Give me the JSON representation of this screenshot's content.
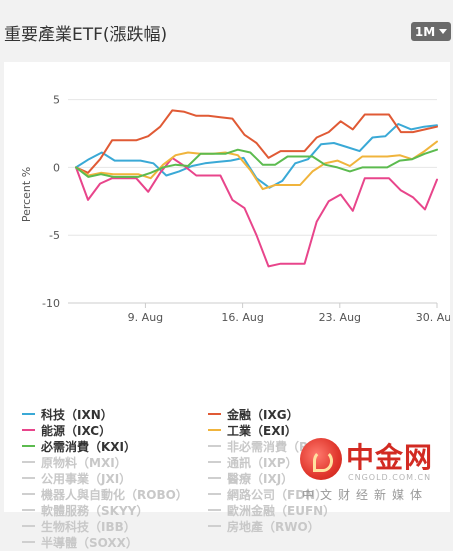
{
  "header": {
    "title": "重要產業ETF(漲跌幅)",
    "range_label": "1M"
  },
  "chart_data": {
    "type": "line",
    "ylabel": "Percent %",
    "ylim": [
      -10,
      6
    ],
    "yticks": [
      5,
      0,
      -5,
      -10
    ],
    "xlim": [
      0,
      26
    ],
    "xticks": [
      {
        "pos": 5,
        "label": "9. Aug"
      },
      {
        "pos": 12,
        "label": "16. Aug"
      },
      {
        "pos": 19,
        "label": "23. Aug"
      },
      {
        "pos": 26,
        "label": "30. Aug"
      }
    ],
    "grid": true,
    "series": [
      {
        "name": "科技（IXN）",
        "color": "#3aa9d6",
        "values": [
          0,
          0.6,
          1.1,
          0.5,
          0.5,
          0.5,
          0.3,
          -0.6,
          -0.3,
          0.1,
          0.3,
          0.4,
          0.5,
          0.7,
          -0.8,
          -1.5,
          -1.0,
          0.3,
          0.6,
          1.7,
          1.8,
          1.5,
          1.2,
          2.2,
          2.3,
          3.2,
          2.8,
          3.0,
          3.1
        ]
      },
      {
        "name": "金融（IXG）",
        "color": "#e05a35",
        "values": [
          0,
          -0.4,
          0.6,
          2.0,
          2.0,
          2.0,
          2.3,
          3.0,
          4.2,
          4.1,
          3.8,
          3.8,
          3.7,
          3.6,
          2.4,
          1.8,
          0.7,
          1.2,
          1.2,
          1.2,
          2.2,
          2.6,
          3.4,
          2.8,
          3.9,
          3.9,
          3.9,
          2.6,
          2.6,
          2.8,
          3.0
        ]
      },
      {
        "name": "能源（IXC）",
        "color": "#e8458b",
        "values": [
          0,
          -2.4,
          -1.2,
          -0.8,
          -0.8,
          -0.8,
          -1.8,
          -0.4,
          0.7,
          0.1,
          -0.6,
          -0.6,
          -0.6,
          -2.4,
          -3.0,
          -5.0,
          -7.3,
          -7.1,
          -7.1,
          -7.1,
          -4.0,
          -2.5,
          -2.0,
          -3.2,
          -0.8,
          -0.8,
          -0.8,
          -1.7,
          -2.2,
          -3.1,
          -0.9
        ]
      },
      {
        "name": "工業（EXI）",
        "color": "#f0b43c",
        "values": [
          0,
          -0.6,
          -0.4,
          -0.5,
          -0.5,
          -0.5,
          -0.8,
          0.2,
          0.9,
          1.1,
          1.0,
          1.0,
          1.1,
          0.9,
          -0.2,
          -1.6,
          -1.3,
          -1.3,
          -1.3,
          -0.3,
          0.3,
          0.5,
          0.1,
          0.8,
          0.8,
          0.8,
          0.9,
          0.6,
          1.2,
          1.9
        ]
      },
      {
        "name": "必需消費（KXI）",
        "color": "#5cbb4f",
        "values": [
          0,
          -0.7,
          -0.5,
          -0.7,
          -0.7,
          -0.7,
          -0.4,
          0.0,
          0.2,
          0.1,
          1.0,
          1.0,
          1.0,
          1.3,
          1.1,
          0.2,
          0.2,
          0.8,
          0.8,
          0.8,
          0.2,
          0.0,
          -0.3,
          0.0,
          0.0,
          0.0,
          0.5,
          0.6,
          1.0,
          1.3
        ]
      }
    ],
    "inactive_series": [
      "非必需消費（RXI）",
      "原物料（MXI）",
      "通訊（IXP）",
      "公用事業（JXI）",
      "醫療（IXJ）",
      "機器人與自動化（ROBO）",
      "網路公司（FDN）",
      "軟體服務（SKYY）",
      "歐洲金融（EUFN）",
      "生物科技（IBB）",
      "房地產（RWO）",
      "半導體（SOXX）"
    ]
  },
  "watermark": {
    "brand_cn": "中金网",
    "brand_en": "CNGOLD.COM.CN",
    "tagline": "中文财经新媒体"
  }
}
